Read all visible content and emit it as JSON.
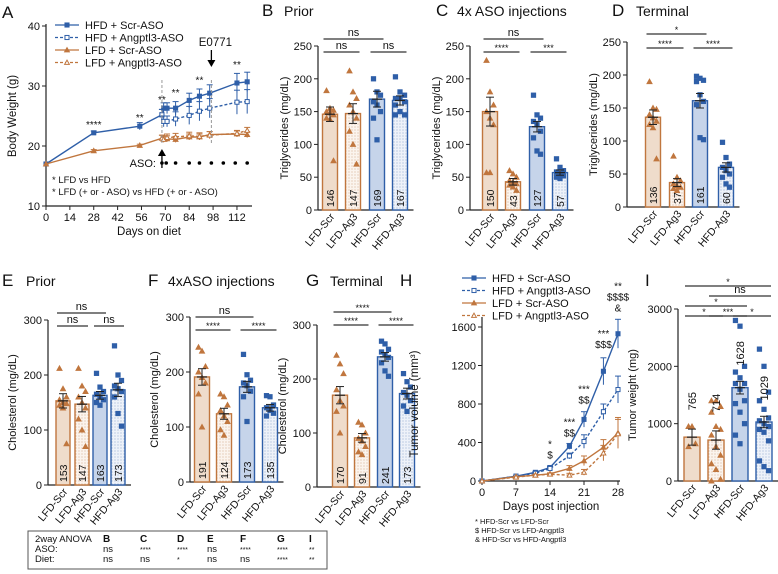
{
  "colors": {
    "lfd": "#c0763e",
    "lfd_fill": "#efdccb",
    "hfd": "#2f5fa8",
    "hfd_fill": "#c6d4ea",
    "axis": "#222222",
    "bracket": "#555555"
  },
  "chart_data": [
    {
      "id": "A",
      "type": "line",
      "letter": "A",
      "title": "",
      "xlabel": "Days on diet",
      "ylabel": "Body Weight (g)",
      "ylim": [
        10,
        40
      ],
      "yticks": [
        10,
        20,
        30,
        40
      ],
      "xticks": [
        0,
        14,
        28,
        42,
        56,
        70,
        84,
        98,
        112
      ],
      "legend": [
        "HFD + Scr-ASO",
        "HFD + Angptl3-ASO",
        "LFD + Scr-ASO",
        "LFD + Angptl3-ASO"
      ],
      "series": [
        {
          "name": "HFD + Scr-ASO",
          "x": [
            0,
            28,
            55,
            68,
            69,
            71,
            76,
            84,
            90,
            96,
            112,
            118
          ],
          "y": [
            17,
            22.2,
            23.3,
            25.2,
            26.3,
            26.3,
            26.3,
            27.6,
            28.3,
            28.8,
            30.5,
            30.7
          ],
          "err": [
            0,
            0.3,
            0.6,
            0.9,
            0.9,
            0.9,
            1.1,
            1.2,
            1.2,
            1.4,
            1.6,
            1.6
          ]
        },
        {
          "name": "HFD + Angptl3-ASO",
          "x": [
            68,
            69,
            71,
            76,
            84,
            90,
            96,
            112,
            118
          ],
          "y": [
            25.2,
            24.1,
            24.1,
            24.5,
            25.1,
            25.8,
            26.3,
            27.3,
            27.4
          ],
          "err": [
            0.9,
            0.9,
            0.9,
            1.2,
            1.5,
            1.6,
            1.6,
            2,
            2
          ]
        },
        {
          "name": "LFD + Scr-ASO",
          "x": [
            0,
            28,
            55,
            68,
            69,
            71,
            76,
            84,
            90,
            96,
            112,
            118
          ],
          "y": [
            17,
            19.2,
            20.1,
            21.3,
            21.2,
            21.2,
            21.1,
            21.5,
            21.5,
            21.9,
            22,
            21.9
          ],
          "err": [
            0,
            0.2,
            0.2,
            0.5,
            0.5,
            0.5,
            0.5,
            0.5,
            0.5,
            0.5,
            0.5,
            0.5
          ]
        },
        {
          "name": "LFD + Angptl3-ASO",
          "x": [
            68,
            69,
            71,
            76,
            84,
            90,
            96,
            112,
            118
          ],
          "y": [
            21.3,
            21.1,
            21.4,
            21.5,
            21.7,
            21.6,
            21.8,
            22.1,
            22.6
          ],
          "err": [
            0.5,
            0.5,
            0.6,
            0.6,
            0.6,
            0.6,
            0.6,
            0.5,
            0.5
          ]
        }
      ],
      "significance": [
        {
          "x": 28,
          "label": "****"
        },
        {
          "x": 55,
          "label": "**"
        },
        {
          "x": 68,
          "label": "**"
        },
        {
          "x": 76,
          "label": "**"
        },
        {
          "x": 90,
          "label": "**"
        },
        {
          "x": 112,
          "label": "**"
        }
      ],
      "event_label": "E0771",
      "event_day": 97,
      "aso_start_day": 68,
      "aso_label": "ASO:",
      "aso_days": [
        68,
        70.5,
        76,
        84,
        90,
        97,
        104,
        111,
        118
      ],
      "footnotes": [
        "* LFD vs HFD",
        "* LFD (+ or - ASO) vs HFD (+ or - ASO)"
      ]
    },
    {
      "id": "B",
      "type": "bar",
      "letter": "B",
      "title": "Prior",
      "ylabel": "Triglycerides (mg/dL)",
      "ylim": [
        0,
        250
      ],
      "yticks": [
        0,
        50,
        100,
        150,
        200,
        250
      ],
      "categories": [
        "LFD-Scr",
        "LFD-Ag3",
        "HFD-Scr",
        "HFD-Ag3"
      ],
      "values": [
        146,
        147,
        169,
        167
      ],
      "sem": [
        11,
        15,
        12,
        7
      ],
      "points": [
        [
          182,
          155,
          152,
          150,
          148,
          145,
          140,
          138,
          75
        ],
        [
          212,
          180,
          170,
          160,
          150,
          140,
          120,
          100,
          70
        ],
        [
          200,
          180,
          175,
          165,
          160,
          150,
          140,
          107
        ],
        [
          203,
          180,
          175,
          170,
          170,
          165,
          160,
          150,
          145,
          145
        ]
      ],
      "brackets": [
        {
          "from": 0,
          "to": 1,
          "label": "ns",
          "level": 0
        },
        {
          "from": 2,
          "to": 3,
          "label": "ns",
          "level": 0
        },
        {
          "from": 0,
          "to": 2,
          "label": "ns",
          "level": 1
        }
      ]
    },
    {
      "id": "C",
      "type": "bar",
      "letter": "C",
      "title": "4x ASO injections",
      "ylabel": "Triglycerides (mg/dL)",
      "ylim": [
        0,
        250
      ],
      "yticks": [
        0,
        50,
        100,
        150,
        200,
        250
      ],
      "categories": [
        "LFD-Scr",
        "LFD-Ag3",
        "HFD-Scr",
        "HFD-Ag3"
      ],
      "values": [
        150,
        43,
        127,
        57
      ],
      "sem": [
        22,
        5,
        8,
        4
      ],
      "points": [
        [
          228,
          180,
          160,
          150,
          140,
          130,
          57,
          57
        ],
        [
          60,
          55,
          50,
          45,
          42,
          40,
          38,
          35,
          30
        ],
        [
          175,
          145,
          140,
          135,
          130,
          120,
          110,
          90,
          85
        ],
        [
          78,
          65,
          60,
          58,
          55,
          52,
          50,
          48
        ]
      ],
      "brackets": [
        {
          "from": 0,
          "to": 1,
          "label": "****",
          "level": 0
        },
        {
          "from": 2,
          "to": 3,
          "label": "***",
          "level": 0
        },
        {
          "from": 0,
          "to": 2,
          "label": "ns",
          "level": 1
        }
      ]
    },
    {
      "id": "D",
      "type": "bar",
      "letter": "D",
      "title": "Terminal",
      "ylabel": "Triglycerides (mg/dL)",
      "ylim": [
        0,
        250
      ],
      "yticks": [
        0,
        50,
        100,
        150,
        200,
        250
      ],
      "categories": [
        "LFD-Scr",
        "LFD-Ag3",
        "HFD-Scr",
        "HFD-Ag3"
      ],
      "values": [
        136,
        37,
        161,
        60
      ],
      "sem": [
        11,
        6,
        11,
        7
      ],
      "points": [
        [
          190,
          150,
          148,
          140,
          135,
          130,
          125,
          120,
          73
        ],
        [
          77,
          45,
          40,
          35,
          32,
          30,
          28,
          25
        ],
        [
          198,
          195,
          192,
          190,
          170,
          160,
          155,
          105,
          102
        ],
        [
          98,
          75,
          65,
          60,
          55,
          50,
          45,
          35,
          30
        ]
      ],
      "brackets": [
        {
          "from": 0,
          "to": 1,
          "label": "****",
          "level": 0
        },
        {
          "from": 2,
          "to": 3,
          "label": "****",
          "level": 0
        },
        {
          "from": 0,
          "to": 2,
          "label": "*",
          "level": 1
        }
      ]
    },
    {
      "id": "E",
      "type": "bar",
      "letter": "E",
      "title": "Prior",
      "ylabel": "Cholesterol (mg/dL)",
      "ylim": [
        0,
        300
      ],
      "yticks": [
        0,
        100,
        200,
        300
      ],
      "categories": [
        "LFD-Scr",
        "LFD-Ag3",
        "HFD-Scr",
        "HFD-Ag3"
      ],
      "values": [
        153,
        147,
        163,
        173
      ],
      "sem": [
        13,
        14,
        7,
        12
      ],
      "points": [
        [
          212,
          175,
          160,
          155,
          150,
          148,
          145,
          140,
          75
        ],
        [
          212,
          180,
          170,
          160,
          150,
          140,
          120,
          100,
          70
        ],
        [
          203,
          178,
          170,
          165,
          160,
          155,
          150,
          145
        ],
        [
          253,
          200,
          190,
          180,
          175,
          170,
          160,
          130,
          107
        ]
      ],
      "brackets": [
        {
          "from": 0,
          "to": 1,
          "label": "ns",
          "level": 0
        },
        {
          "from": 2,
          "to": 3,
          "label": "ns",
          "level": 0
        },
        {
          "from": 0,
          "to": 2,
          "label": "ns",
          "level": 1
        }
      ]
    },
    {
      "id": "F",
      "type": "bar",
      "letter": "F",
      "title": "4xASO injections",
      "ylabel": "Cholesterol (mg/dL)",
      "ylim": [
        0,
        300
      ],
      "yticks": [
        0,
        100,
        200,
        300
      ],
      "categories": [
        "LFD-Scr",
        "LFD-Ag3",
        "HFD-Scr",
        "HFD-Ag3"
      ],
      "values": [
        191,
        124,
        173,
        135
      ],
      "sem": [
        15,
        10,
        10,
        6
      ],
      "points": [
        [
          245,
          238,
          210,
          200,
          190,
          180,
          160,
          100
        ],
        [
          160,
          155,
          140,
          130,
          120,
          110,
          95,
          85
        ],
        [
          232,
          195,
          185,
          180,
          175,
          165,
          155,
          110
        ],
        [
          157,
          155,
          140,
          135,
          130,
          125,
          120
        ]
      ],
      "brackets": [
        {
          "from": 0,
          "to": 1,
          "label": "****",
          "level": 0
        },
        {
          "from": 2,
          "to": 3,
          "label": "****",
          "level": 0
        },
        {
          "from": 0,
          "to": 2,
          "label": "ns",
          "level": 1
        }
      ]
    },
    {
      "id": "G",
      "type": "bar",
      "letter": "G",
      "title": "Terminal",
      "ylabel": "Cholesterol (mg/dL)",
      "ylim": [
        0,
        300
      ],
      "yticks": [
        0,
        100,
        200,
        300
      ],
      "categories": [
        "LFD-Scr",
        "LFD-Ag3",
        "HFD-Scr",
        "HFD-Ag3"
      ],
      "values": [
        170,
        91,
        241,
        173
      ],
      "sem": [
        16,
        8,
        8,
        10
      ],
      "points": [
        [
          244,
          228,
          210,
          180,
          160,
          150,
          140,
          100
        ],
        [
          120,
          115,
          100,
          90,
          85,
          75,
          65,
          60
        ],
        [
          270,
          265,
          255,
          250,
          245,
          240,
          230,
          215,
          205
        ],
        [
          210,
          195,
          185,
          175,
          170,
          160,
          150,
          140
        ]
      ],
      "brackets": [
        {
          "from": 0,
          "to": 1,
          "label": "****",
          "level": 0
        },
        {
          "from": 2,
          "to": 3,
          "label": "****",
          "level": 0
        },
        {
          "from": 0,
          "to": 2,
          "label": "****",
          "level": 1
        }
      ]
    },
    {
      "id": "H",
      "type": "line",
      "letter": "H",
      "title": "",
      "xlabel": "Days post injection",
      "ylabel": "Tumor volume (mm³)",
      "ylim": [
        0,
        1700
      ],
      "yticks": [
        0,
        400,
        800,
        1200,
        1600
      ],
      "xticks": [
        0,
        7,
        14,
        21,
        28
      ],
      "legend": [
        "HFD + Scr-ASO",
        "HFD + Angptl3-ASO",
        "LFD + Scr-ASO",
        "LFD + Angptl3-ASO"
      ],
      "series": [
        {
          "name": "HFD + Scr-ASO",
          "x": [
            0,
            7,
            11,
            14,
            18,
            21,
            25,
            28
          ],
          "y": [
            0,
            50,
            90,
            140,
            360,
            640,
            1140,
            1530
          ],
          "err": [
            0,
            5,
            10,
            15,
            30,
            80,
            140,
            150
          ]
        },
        {
          "name": "HFD + Angptl3-ASO",
          "x": [
            0,
            7,
            11,
            14,
            18,
            21,
            25,
            28
          ],
          "y": [
            0,
            50,
            80,
            130,
            260,
            410,
            720,
            950
          ],
          "err": [
            0,
            5,
            10,
            15,
            30,
            70,
            80,
            140
          ]
        },
        {
          "name": "LFD + Scr-ASO",
          "x": [
            0,
            7,
            11,
            14,
            18,
            21,
            25,
            28
          ],
          "y": [
            0,
            45,
            60,
            75,
            130,
            210,
            350,
            500
          ],
          "err": [
            0,
            5,
            10,
            10,
            30,
            50,
            80,
            160
          ]
        },
        {
          "name": "LFD + Angptl3-ASO",
          "x": [
            0,
            7,
            11,
            14,
            18,
            21,
            25,
            28
          ],
          "y": [
            0,
            40,
            60,
            70,
            60,
            90,
            290,
            490
          ],
          "err": [
            0,
            5,
            10,
            10,
            20,
            30,
            80,
            150
          ]
        }
      ],
      "significance": [
        {
          "x": 14,
          "labels": [
            "*",
            "$"
          ]
        },
        {
          "x": 18,
          "labels": [
            "***",
            "$$"
          ]
        },
        {
          "x": 21,
          "labels": [
            "***",
            "$$"
          ]
        },
        {
          "x": 25,
          "labels": [
            "***",
            "$$$"
          ]
        },
        {
          "x": 28,
          "labels": [
            "**",
            "$$$$",
            "&"
          ]
        }
      ],
      "footnotes": [
        "*   HFD-Scr vs LFD-Scr",
        "$  HFD-Scr vs LFD-Angptl3",
        "&  HFD-Scr vs HFD-Angptl3"
      ]
    },
    {
      "id": "I",
      "type": "bar",
      "letter": "I",
      "title": "",
      "ylabel": "Tumor weight (mg)",
      "ylim": [
        0,
        3000
      ],
      "yticks": [
        0,
        1000,
        2000,
        3000
      ],
      "categories": [
        "LFD-Scr",
        "LFD-Ag3",
        "HFD-Scr",
        "HFD-Ag3"
      ],
      "values": [
        765,
        714,
        1628,
        1029
      ],
      "sem": [
        140,
        160,
        110,
        100
      ],
      "points": [
        [
          950,
          950,
          650,
          600
        ],
        [
          1400,
          1400,
          1300,
          1200,
          950,
          900,
          800,
          600,
          450,
          300,
          200,
          30,
          0
        ],
        [
          2800,
          2700,
          2000,
          1900,
          1800,
          1700,
          1700,
          1600,
          1400,
          1350,
          1200,
          1000,
          800,
          650
        ],
        [
          2300,
          2000,
          1550,
          1400,
          1250,
          1100,
          1050,
          1000,
          950,
          900,
          850,
          700,
          350,
          250,
          180
        ]
      ],
      "brackets": [
        {
          "from": 0,
          "to": 1,
          "label": "*",
          "level": 0
        },
        {
          "from": 1,
          "to": 2,
          "label": "***",
          "level": 0
        },
        {
          "from": 2,
          "to": 3,
          "label": "*",
          "level": 0
        },
        {
          "from": 0,
          "to": 2,
          "label": "*",
          "level": 1
        },
        {
          "from": 1,
          "to": 3,
          "label": "ns",
          "level": 2
        },
        {
          "from": 0,
          "to": 3,
          "label": "*",
          "level": 3
        }
      ]
    }
  ],
  "anova_table": {
    "header": [
      "2way ANOVA",
      "B",
      "C",
      "D",
      "E",
      "F",
      "G",
      "I"
    ],
    "rows": [
      [
        "ASO:",
        "ns",
        "****",
        "****",
        "ns",
        "****",
        "****",
        "**"
      ],
      [
        "Diet:",
        "ns",
        "ns",
        "*",
        "ns",
        "ns",
        "****",
        "**"
      ]
    ]
  }
}
